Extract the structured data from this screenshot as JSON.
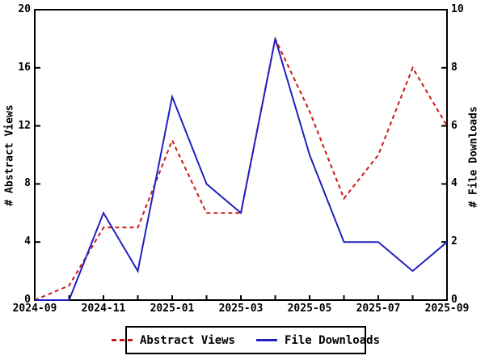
{
  "chart_data": {
    "type": "line",
    "title": "",
    "x": [
      "2024-09",
      "2024-10",
      "2024-11",
      "2024-12",
      "2025-01",
      "2025-02",
      "2025-03",
      "2025-04",
      "2025-05",
      "2025-06",
      "2025-07",
      "2025-08",
      "2025-09"
    ],
    "series": [
      {
        "name": "Abstract Views",
        "axis": "left",
        "color": "#cc1818",
        "style": "dashed",
        "values": [
          0,
          1,
          5,
          5,
          11,
          6,
          6,
          18,
          13,
          7,
          10,
          16,
          12
        ]
      },
      {
        "name": "File Downloads",
        "axis": "right",
        "color": "#2020c0",
        "style": "solid",
        "values": [
          0,
          0,
          3,
          1,
          7,
          4,
          3,
          9,
          5,
          2,
          2,
          1,
          2
        ]
      }
    ],
    "left_axis": {
      "label": "# Abstract Views",
      "min": 0,
      "max": 20,
      "ticks": [
        0,
        4,
        8,
        12,
        16,
        20
      ]
    },
    "right_axis": {
      "label": "# File Downloads",
      "min": 0,
      "max": 10,
      "ticks": [
        0,
        2,
        4,
        6,
        8,
        10
      ]
    },
    "x_axis": {
      "tick_labels": [
        "2024-09",
        "2024-11",
        "2025-01",
        "2025-03",
        "2025-05",
        "2025-07",
        "2025-09"
      ]
    },
    "legend": {
      "position": "bottom-center",
      "entries": [
        "Abstract Views",
        "File Downloads"
      ]
    },
    "grid": false,
    "frame_color": "#000000"
  }
}
